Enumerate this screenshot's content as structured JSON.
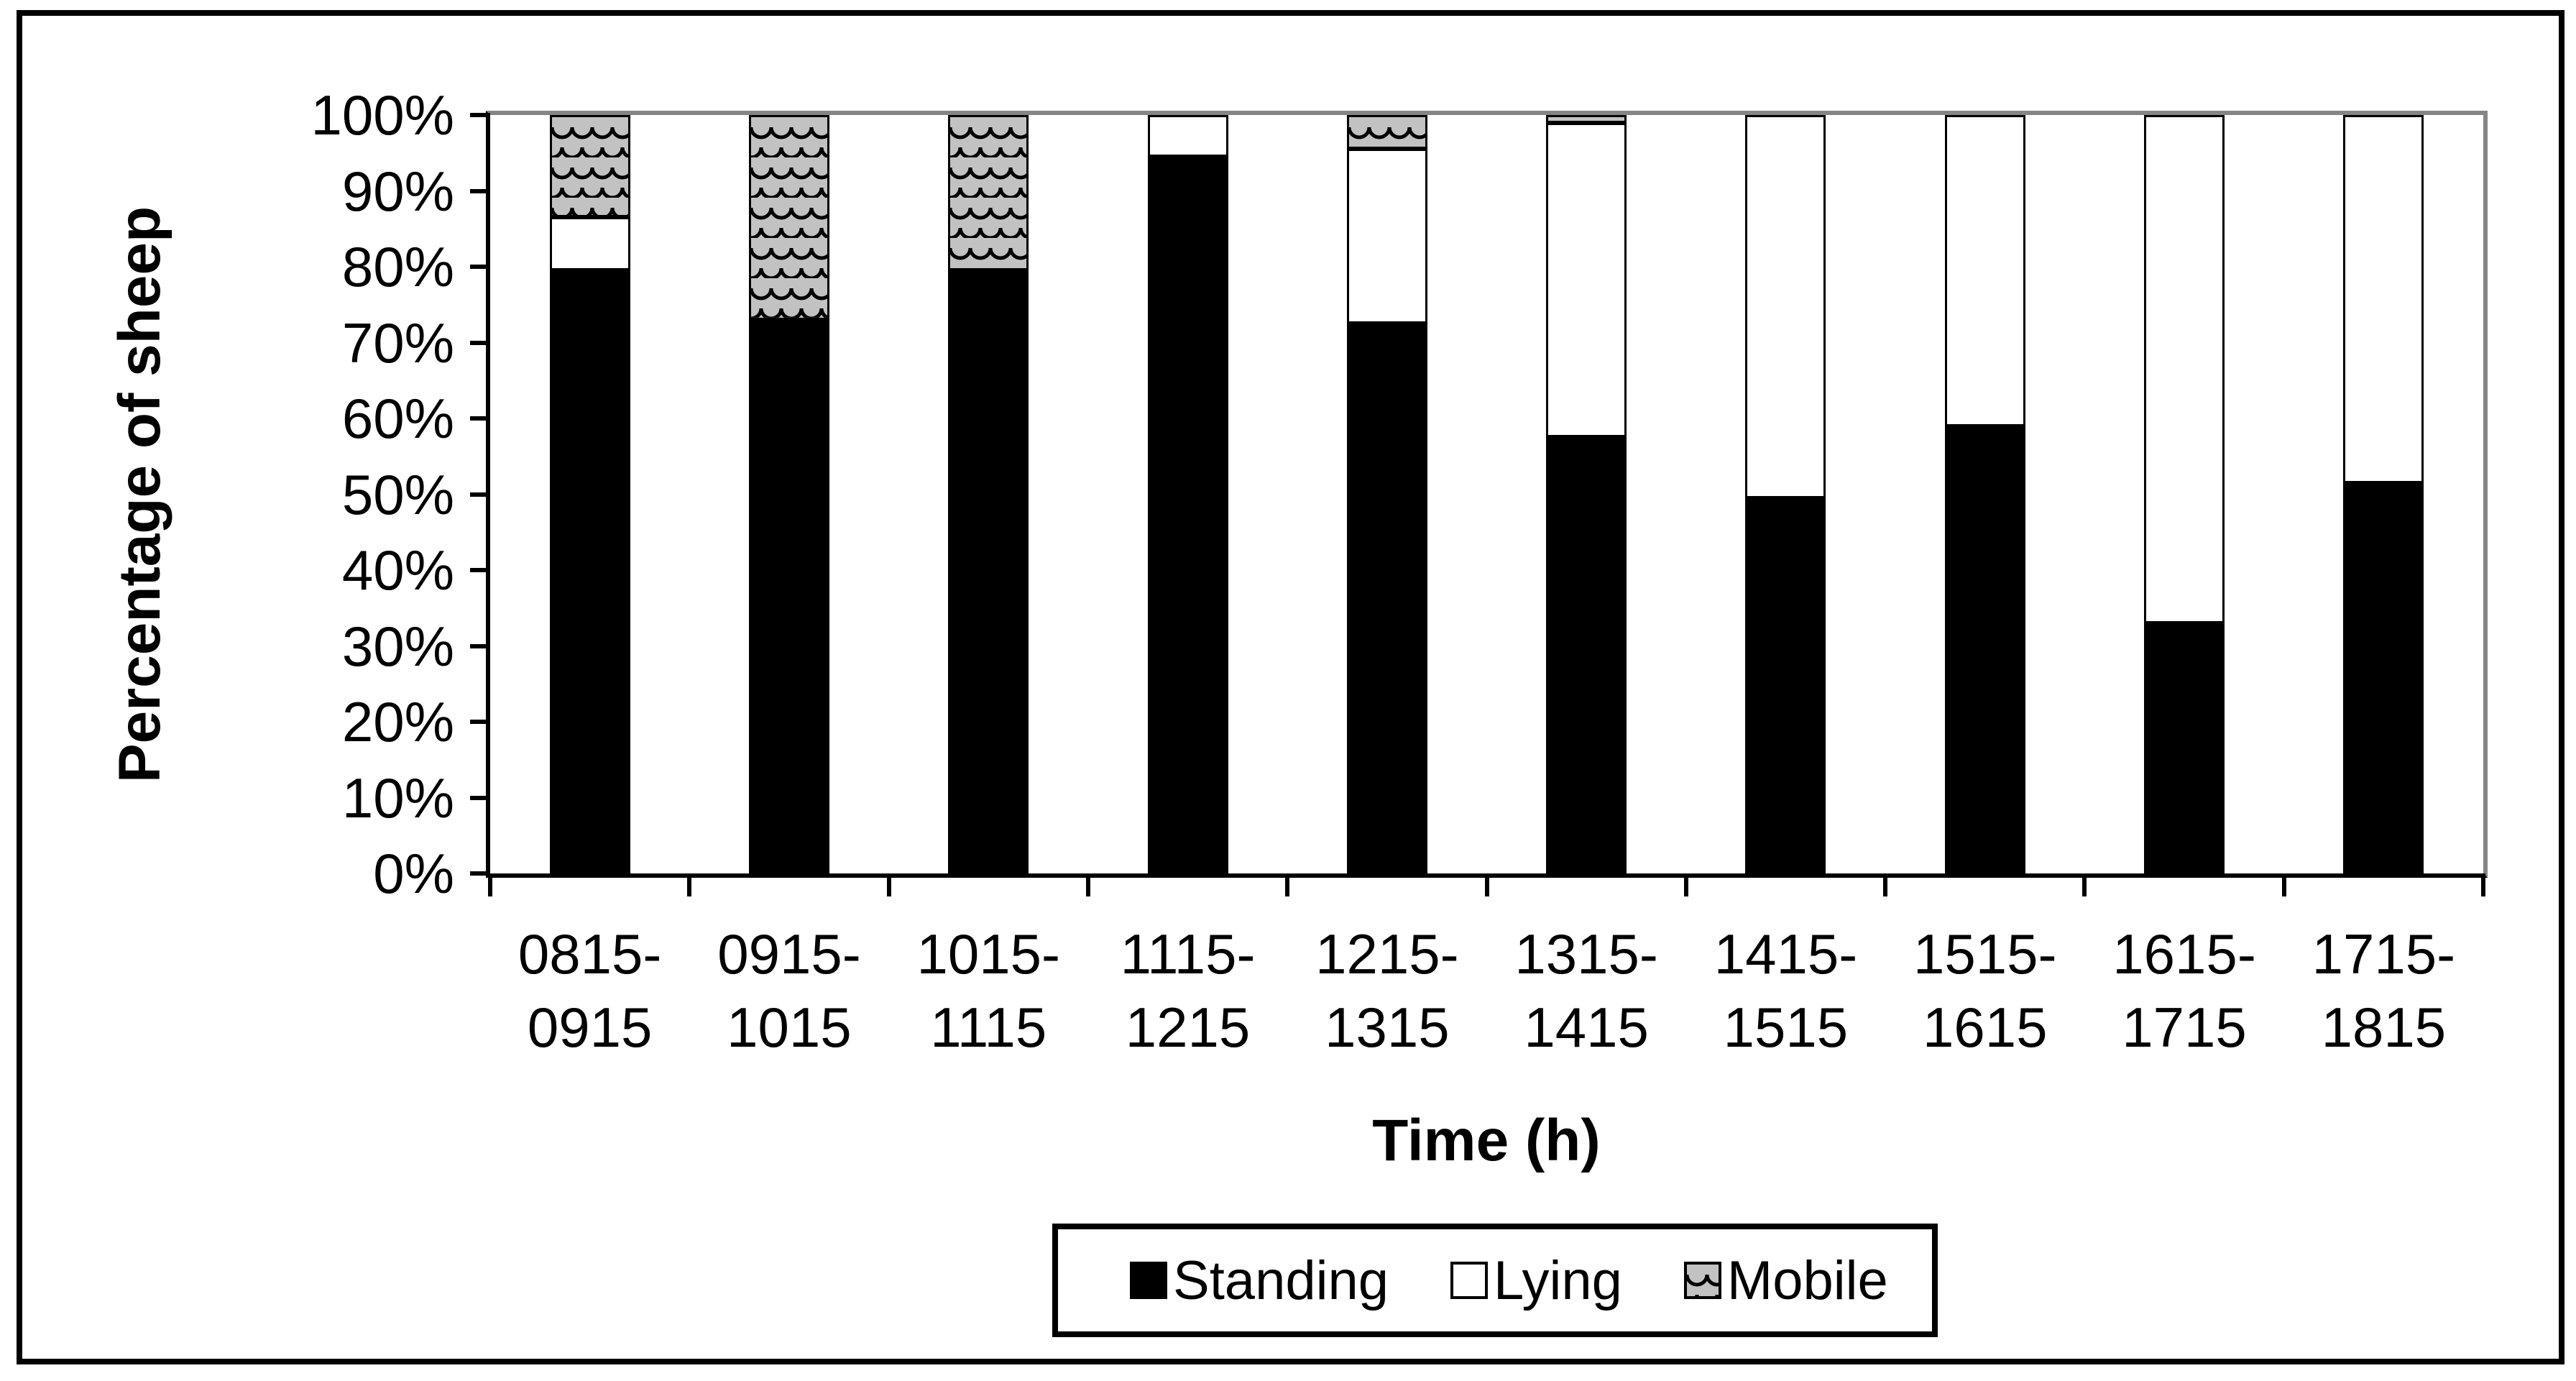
{
  "figure": {
    "y_axis": {
      "title": "Percentage of sheep",
      "ticks": [
        "100%",
        "90%",
        "80%",
        "70%",
        "60%",
        "50%",
        "40%",
        "30%",
        "20%",
        "10%",
        "0%"
      ]
    },
    "x_axis": {
      "title": "Time (h)",
      "tick_labels": [
        [
          "0815-",
          "0915"
        ],
        [
          "0915-",
          "1015"
        ],
        [
          "1015-",
          "1115"
        ],
        [
          "1115-",
          "1215"
        ],
        [
          "1215-",
          "1315"
        ],
        [
          "1315-",
          "1415"
        ],
        [
          "1415-",
          "1515"
        ],
        [
          "1515-",
          "1615"
        ],
        [
          "1615-",
          "1715"
        ],
        [
          "1715-",
          "1815"
        ]
      ]
    },
    "legend": {
      "items": [
        {
          "label": "Standing",
          "swatch": "black-square"
        },
        {
          "label": "Lying",
          "swatch": "white-square"
        },
        {
          "label": "Mobile",
          "swatch": "pattern-square"
        }
      ]
    }
  },
  "chart_data": {
    "type": "bar",
    "subtype": "stacked-100-percent",
    "title": "",
    "xlabel": "Time (h)",
    "ylabel": "Percentage of sheep",
    "ylim": [
      0,
      100
    ],
    "y_tick_step": 10,
    "grid": "top-line-only",
    "legend_position": "bottom",
    "categories": [
      "0815-0915",
      "0915-1015",
      "1015-1115",
      "1115-1215",
      "1215-1315",
      "1315-1415",
      "1415-1515",
      "1515-1615",
      "1615-1715",
      "1715-1815"
    ],
    "series": [
      {
        "name": "Standing",
        "fill": "black",
        "values": [
          79.5,
          73,
          79.5,
          94.5,
          72.5,
          57.5,
          49.5,
          59,
          33,
          51.5
        ]
      },
      {
        "name": "Lying",
        "fill": "white",
        "values": [
          7,
          0,
          0,
          5.5,
          23,
          41.5,
          50.5,
          41,
          67,
          48.5
        ]
      },
      {
        "name": "Mobile",
        "fill": "gray-scale-pattern",
        "values": [
          13.5,
          27,
          20.5,
          0,
          4.5,
          1,
          0,
          0,
          0,
          0
        ]
      }
    ]
  },
  "colors": {
    "bar_black": "#000000",
    "bar_white": "#ffffff",
    "pattern_gray": "#c2c2c2",
    "grid_gray": "#858585",
    "text": "#000000",
    "background": "#ffffff"
  }
}
